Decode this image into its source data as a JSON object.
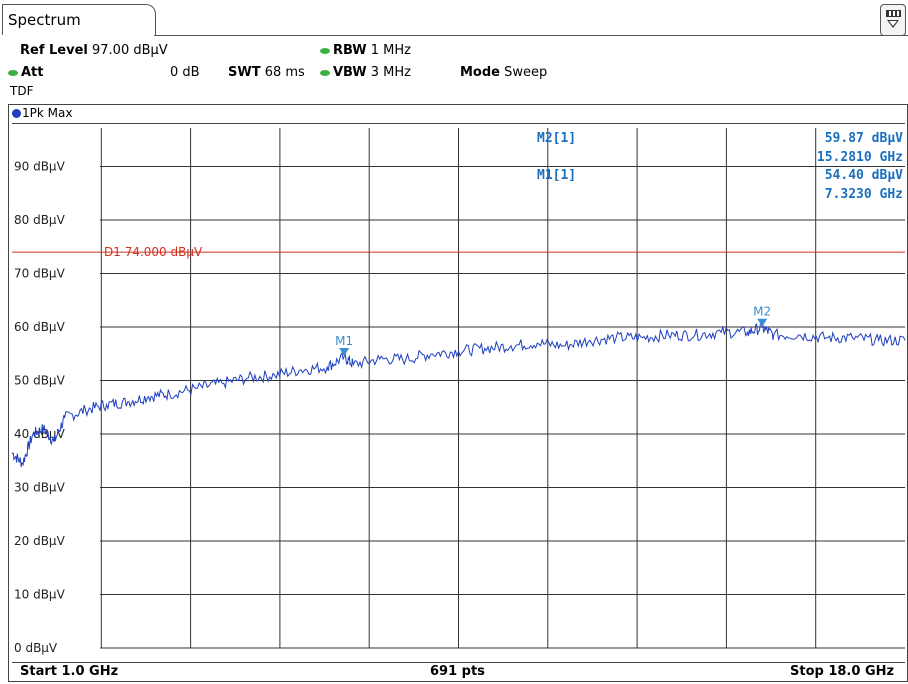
{
  "tab": {
    "label": "Spectrum"
  },
  "settings": {
    "ref_level_label": "Ref Level",
    "ref_level_value": "97.00 dBµV",
    "att_label": "Att",
    "att_value": "0 dB",
    "swt_label": "SWT",
    "swt_value": "68 ms",
    "rbw_label": "RBW",
    "rbw_value": "1 MHz",
    "vbw_label": "VBW",
    "vbw_value": "3 MHz",
    "mode_label": "Mode",
    "mode_value": "Sweep",
    "tdf_label": "TDF"
  },
  "trace": {
    "label": "1Pk Max",
    "color": "#1f3fbf"
  },
  "markers": [
    {
      "name": "M2[1]",
      "level": "59.87 dBµV",
      "freq": "15.2810 GHz"
    },
    {
      "name": "M1[1]",
      "level": "54.40 dBµV",
      "freq": "7.3230 GHz"
    }
  ],
  "footer": {
    "start": "Start 1.0 GHz",
    "points": "691 pts",
    "stop": "Stop 18.0 GHz"
  },
  "chart_data": {
    "type": "line",
    "x_unit": "GHz",
    "xlim": [
      1.0,
      18.0
    ],
    "ylim": [
      0,
      97
    ],
    "y_unit": "dBµV",
    "y_ticks": [
      "90 dBµV",
      "80 dBµV",
      "70 dBµV",
      "60 dBµV",
      "50 dBµV",
      "40 dBµV",
      "30 dBµV",
      "20 dBµV",
      "10 dBµV",
      "0 dBµV"
    ],
    "y_tick_values": [
      90,
      80,
      70,
      60,
      50,
      40,
      30,
      20,
      10,
      0
    ],
    "grid": true,
    "limit_line": {
      "label": "D1 74.000 dBµV",
      "value": 74.0,
      "color": "#d03020"
    },
    "marker_points": [
      {
        "label": "M1",
        "x": 7.323,
        "y": 54.4
      },
      {
        "label": "M2",
        "x": 15.281,
        "y": 59.87
      }
    ],
    "series": [
      {
        "color": "#1f3fbf",
        "x": [
          1.0,
          1.2,
          1.4,
          1.6,
          1.8,
          2.0,
          2.4,
          2.8,
          3.2,
          3.6,
          4.0,
          4.5,
          5.0,
          5.5,
          6.0,
          6.5,
          7.0,
          7.323,
          7.5,
          8.0,
          8.5,
          9.0,
          9.5,
          10.0,
          10.5,
          11.0,
          11.5,
          12.0,
          12.5,
          13.0,
          13.5,
          14.0,
          14.5,
          15.0,
          15.281,
          15.5,
          16.0,
          16.5,
          17.0,
          17.5,
          18.0
        ],
        "y": [
          36.5,
          34.5,
          40.0,
          41.0,
          38.5,
          43.0,
          44.5,
          45.5,
          46.0,
          47.0,
          47.5,
          48.5,
          49.5,
          50.5,
          51.0,
          52.0,
          52.5,
          54.4,
          53.0,
          54.0,
          54.0,
          55.0,
          55.5,
          56.0,
          56.5,
          57.0,
          56.5,
          57.5,
          58.0,
          58.0,
          58.5,
          58.5,
          59.0,
          59.0,
          59.87,
          58.5,
          58.5,
          58.0,
          58.0,
          57.5,
          57.5
        ]
      }
    ]
  }
}
